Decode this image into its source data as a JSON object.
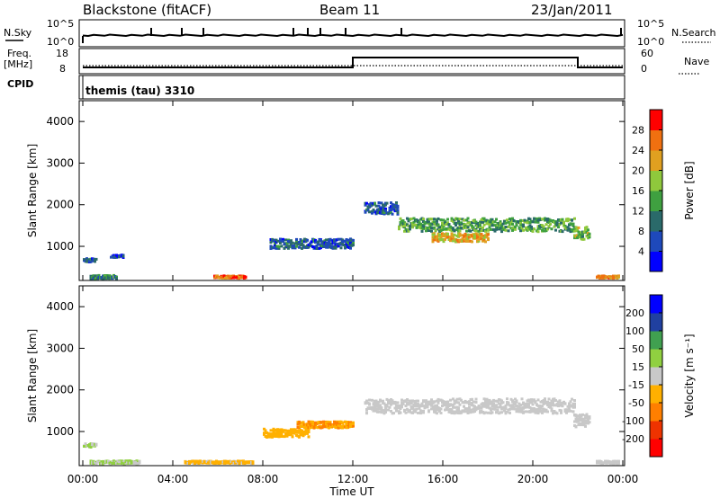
{
  "header": {
    "station": "Blackstone (fitACF)",
    "beam": "Beam 11",
    "date": "23/Jan/2011"
  },
  "top_panels": {
    "nsky_label": "N.Sky",
    "nsky_ticks": [
      "10^5",
      "10^0"
    ],
    "nsearch_label": "N.Search",
    "freq_label": "Freq.",
    "freq_unit": "[MHz]",
    "freq_ticks": [
      "18",
      "8"
    ],
    "nave_ticks": [
      "60",
      "0"
    ],
    "nave_label": "Nave",
    "cpid_label": "CPID",
    "cpid_value": "themis (tau) 3310"
  },
  "x_axis": {
    "label": "Time UT",
    "ticks": [
      "00:00",
      "04:00",
      "08:00",
      "12:00",
      "16:00",
      "20:00",
      "00:00"
    ]
  },
  "colors": {
    "scale": [
      "#0000ff",
      "#1e49bb",
      "#2a6a6a",
      "#3fa040",
      "#8fc83c",
      "#e0a020",
      "#f07010",
      "#ff0000"
    ],
    "velocity_scale": [
      "#ff0000",
      "#ee3300",
      "#ff7f00",
      "#ffb000",
      "#c8c8c8",
      "#90d040",
      "#40a050",
      "#2040a0",
      "#0000ff"
    ]
  },
  "chart_data": [
    {
      "type": "heatmap",
      "panel": "power",
      "ylabel": "Slant Range [km]",
      "ylim": [
        180,
        4500
      ],
      "yticks": [
        1000,
        2000,
        3000,
        4000
      ],
      "xlim_hours": [
        0,
        24
      ],
      "colorbar_label": "Power [dB]",
      "colorbar_range": [
        0,
        32
      ],
      "colorbar_ticks": [
        "4",
        "8",
        "12",
        "16",
        "20",
        "24",
        "28"
      ],
      "segments": [
        {
          "t0": 0.0,
          "t1": 0.6,
          "r": 650,
          "w": 90,
          "v": 8
        },
        {
          "t0": 0.3,
          "t1": 1.5,
          "r": 250,
          "w": 80,
          "v": 12
        },
        {
          "t0": 1.2,
          "t1": 1.8,
          "r": 750,
          "w": 60,
          "v": 6
        },
        {
          "t0": 5.8,
          "t1": 7.2,
          "r": 250,
          "w": 60,
          "v": 26
        },
        {
          "t0": 8.3,
          "t1": 12.0,
          "r": 1050,
          "w": 230,
          "v": 8
        },
        {
          "t0": 12.5,
          "t1": 14.0,
          "r": 1900,
          "w": 280,
          "v": 8
        },
        {
          "t0": 14.0,
          "t1": 21.8,
          "r": 1500,
          "w": 320,
          "v": 14
        },
        {
          "t0": 15.5,
          "t1": 18.0,
          "r": 1200,
          "w": 200,
          "v": 22
        },
        {
          "t0": 21.8,
          "t1": 22.5,
          "r": 1300,
          "w": 300,
          "v": 16
        },
        {
          "t0": 22.8,
          "t1": 23.8,
          "r": 250,
          "w": 60,
          "v": 24
        }
      ]
    },
    {
      "type": "heatmap",
      "panel": "velocity",
      "ylabel": "Slant Range [km]",
      "ylim": [
        180,
        4500
      ],
      "yticks": [
        1000,
        2000,
        3000,
        4000
      ],
      "xlim_hours": [
        0,
        24
      ],
      "colorbar_label": "Velocity [m s⁻¹]",
      "colorbar_range": [
        -250,
        250
      ],
      "colorbar_ticks": [
        "200",
        "100",
        "50",
        "15",
        "-15",
        "-50",
        "-100",
        "-200"
      ],
      "segments": [
        {
          "t0": 0.0,
          "t1": 0.6,
          "r": 650,
          "w": 90,
          "v": 30
        },
        {
          "t0": 0.3,
          "t1": 2.5,
          "r": 250,
          "w": 70,
          "v": 30
        },
        {
          "t0": 4.5,
          "t1": 7.5,
          "r": 250,
          "w": 60,
          "v": -40
        },
        {
          "t0": 8.0,
          "t1": 10.0,
          "r": 950,
          "w": 200,
          "v": -60
        },
        {
          "t0": 9.5,
          "t1": 12.0,
          "r": 1150,
          "w": 150,
          "v": -80
        },
        {
          "t0": 12.5,
          "t1": 21.8,
          "r": 1600,
          "w": 350,
          "v": 0
        },
        {
          "t0": 21.8,
          "t1": 22.5,
          "r": 1250,
          "w": 300,
          "v": 0
        },
        {
          "t0": 22.8,
          "t1": 23.8,
          "r": 250,
          "w": 60,
          "v": 0
        }
      ]
    }
  ]
}
